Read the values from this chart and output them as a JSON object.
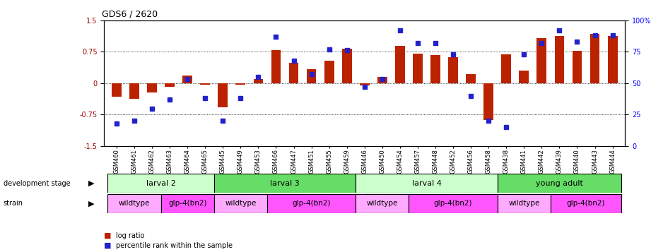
{
  "title": "GDS6 / 2620",
  "samples": [
    "GSM460",
    "GSM461",
    "GSM462",
    "GSM463",
    "GSM464",
    "GSM465",
    "GSM445",
    "GSM449",
    "GSM453",
    "GSM466",
    "GSM447",
    "GSM451",
    "GSM455",
    "GSM459",
    "GSM446",
    "GSM450",
    "GSM454",
    "GSM457",
    "GSM448",
    "GSM452",
    "GSM456",
    "GSM458",
    "GSM438",
    "GSM441",
    "GSM442",
    "GSM439",
    "GSM440",
    "GSM443",
    "GSM444"
  ],
  "log_ratio": [
    -0.32,
    -0.38,
    -0.22,
    -0.08,
    0.18,
    -0.03,
    -0.58,
    -0.04,
    0.1,
    0.78,
    0.48,
    0.33,
    0.53,
    0.82,
    -0.06,
    0.14,
    0.88,
    0.7,
    0.67,
    0.62,
    0.22,
    -0.87,
    0.68,
    0.3,
    1.08,
    1.12,
    0.77,
    1.18,
    1.12
  ],
  "percentile": [
    18,
    20,
    30,
    37,
    53,
    38,
    20,
    38,
    55,
    87,
    68,
    57,
    77,
    76,
    47,
    53,
    92,
    82,
    82,
    73,
    40,
    20,
    15,
    73,
    82,
    92,
    83,
    88,
    88
  ],
  "dev_stage_groups": [
    {
      "label": "larval 2",
      "start": 0,
      "end": 6,
      "color": "#ccffcc"
    },
    {
      "label": "larval 3",
      "start": 6,
      "end": 14,
      "color": "#66dd66"
    },
    {
      "label": "larval 4",
      "start": 14,
      "end": 22,
      "color": "#ccffcc"
    },
    {
      "label": "young adult",
      "start": 22,
      "end": 29,
      "color": "#66dd66"
    }
  ],
  "strain_groups": [
    {
      "label": "wildtype",
      "start": 0,
      "end": 3,
      "color": "#ffaaff"
    },
    {
      "label": "glp-4(bn2)",
      "start": 3,
      "end": 6,
      "color": "#ff55ff"
    },
    {
      "label": "wildtype",
      "start": 6,
      "end": 9,
      "color": "#ffaaff"
    },
    {
      "label": "glp-4(bn2)",
      "start": 9,
      "end": 14,
      "color": "#ff55ff"
    },
    {
      "label": "wildtype",
      "start": 14,
      "end": 17,
      "color": "#ffaaff"
    },
    {
      "label": "glp-4(bn2)",
      "start": 17,
      "end": 22,
      "color": "#ff55ff"
    },
    {
      "label": "wildtype",
      "start": 22,
      "end": 25,
      "color": "#ffaaff"
    },
    {
      "label": "glp-4(bn2)",
      "start": 25,
      "end": 29,
      "color": "#ff55ff"
    }
  ],
  "bar_color": "#bb2200",
  "dot_color": "#2222cc",
  "ylim_left": [
    -1.5,
    1.5
  ],
  "ylim_right": [
    0,
    100
  ],
  "yticks_left": [
    -1.5,
    -0.75,
    0.0,
    0.75,
    1.5
  ],
  "ytick_labels_left": [
    "-1.5",
    "-0.75",
    "0",
    "0.75",
    "1.5"
  ],
  "yticks_right": [
    0,
    25,
    50,
    75,
    100
  ],
  "ytick_labels_right": [
    "0",
    "25",
    "50",
    "75",
    "100%"
  ]
}
